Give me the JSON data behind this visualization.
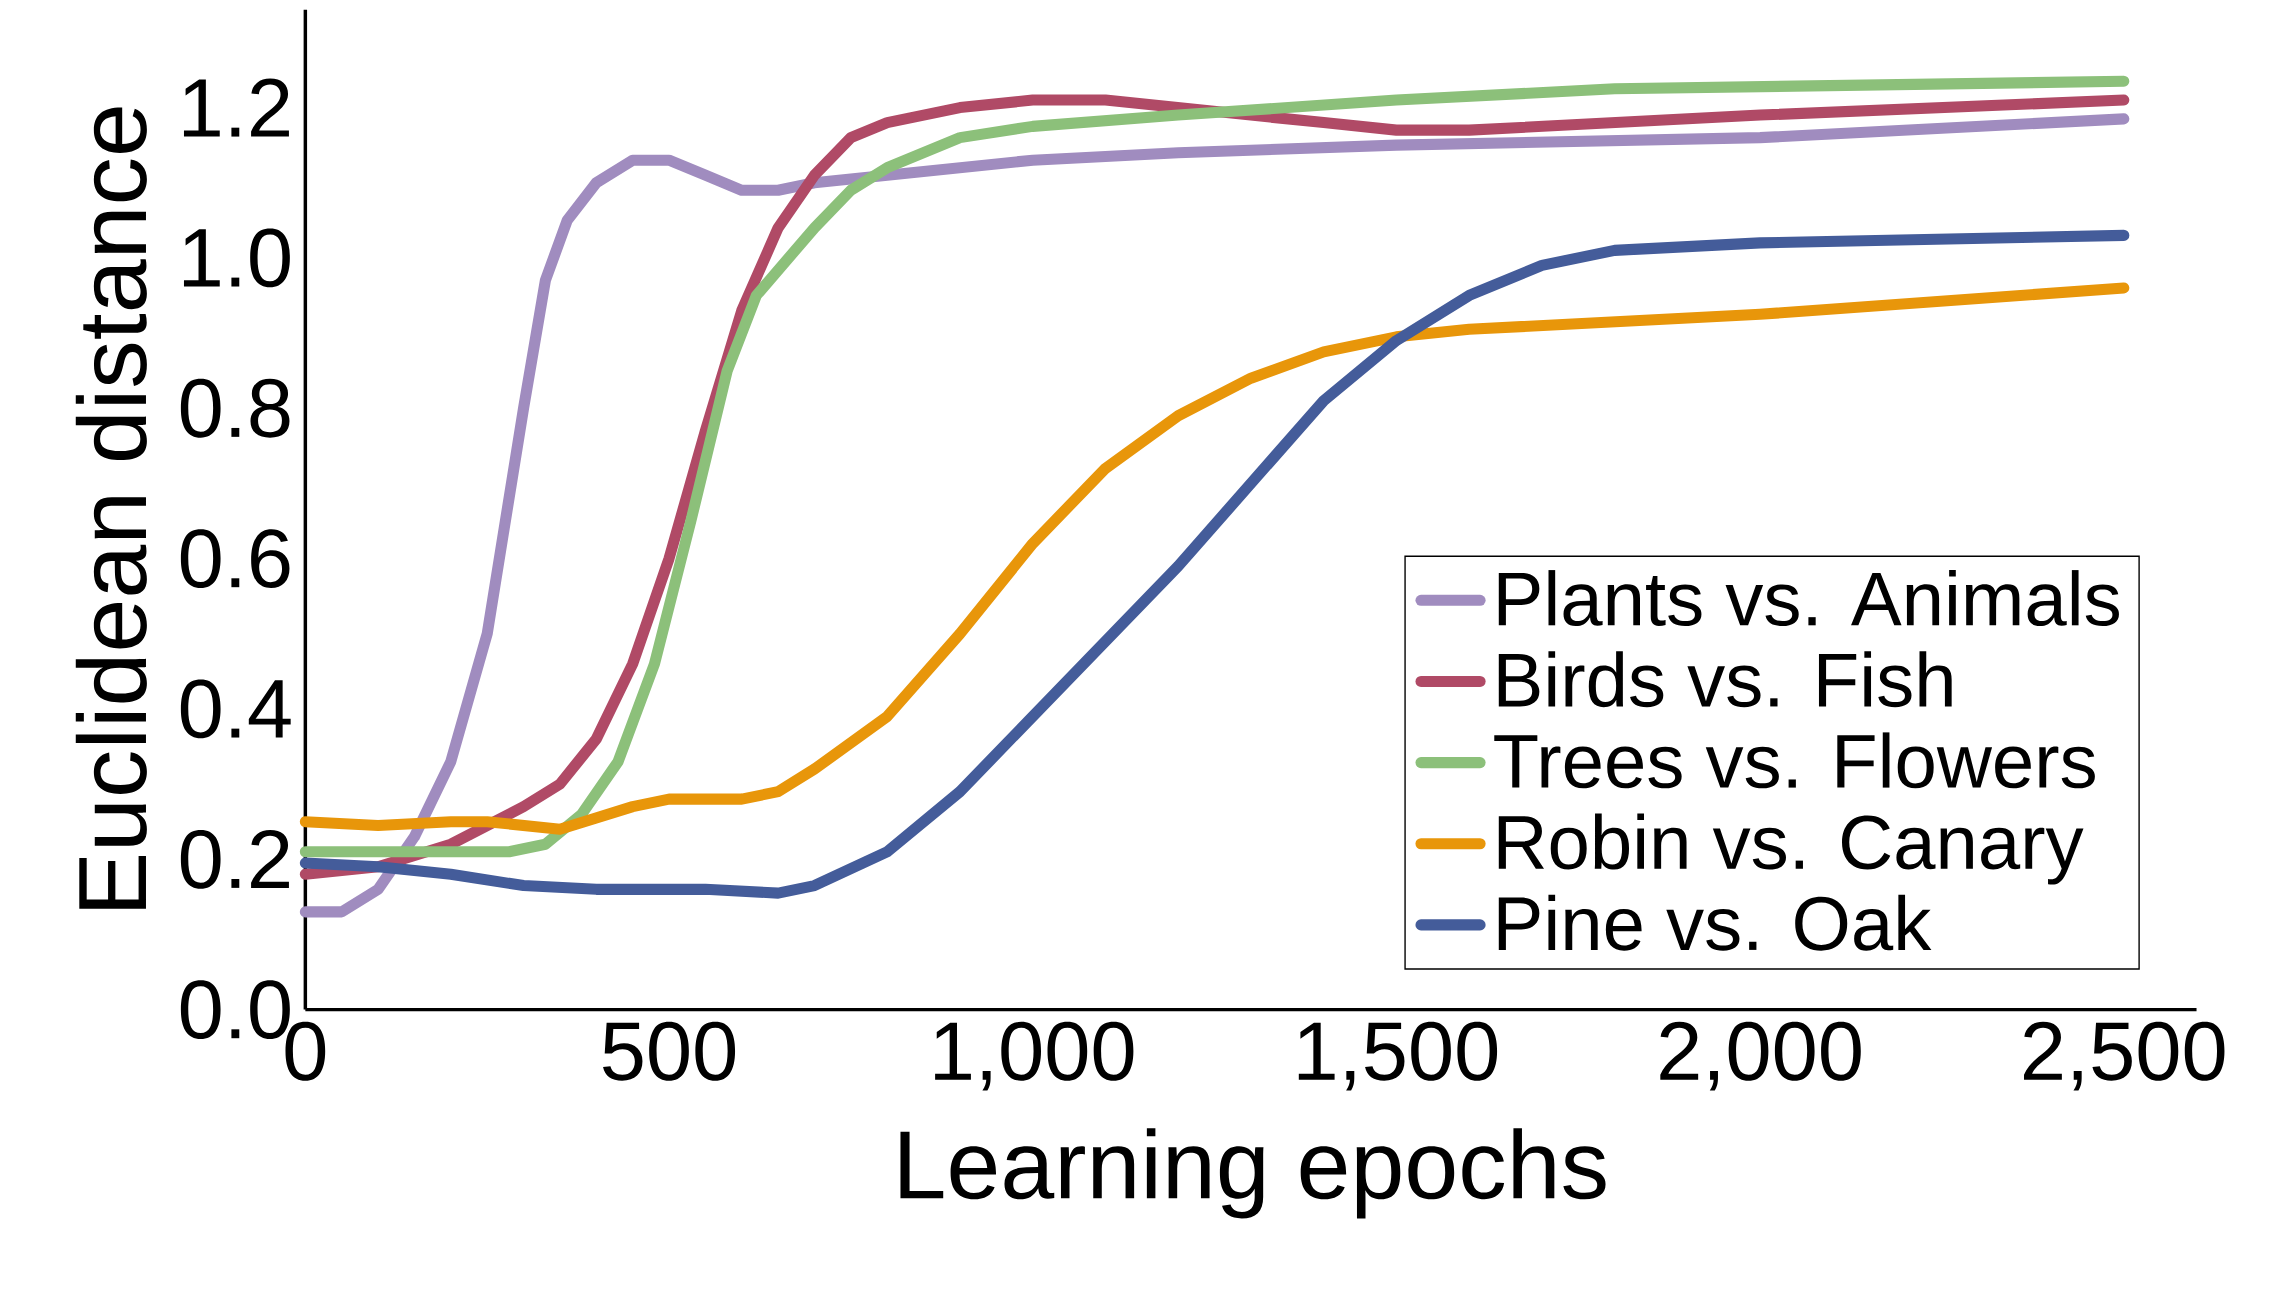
{
  "chart_data": {
    "type": "line",
    "xlabel": "Learning epochs",
    "ylabel": "Euclidean distance",
    "xlim": [
      0,
      2600
    ],
    "ylim": [
      0,
      1.33
    ],
    "xticks": [
      0,
      500,
      {
        "value": 1000,
        "label": "1,000"
      },
      {
        "value": 1500,
        "label": "1,500"
      },
      {
        "value": 2000,
        "label": "2,000"
      },
      {
        "value": 2500,
        "label": "2,500"
      }
    ],
    "yticks": [
      {
        "value": 0,
        "label": "0.0"
      },
      0.2,
      0.4,
      0.6,
      0.8,
      {
        "value": 1,
        "label": "1.0"
      },
      1.2
    ],
    "legend": "bottom right",
    "line_style": "solid",
    "marker": "none",
    "series": [
      {
        "name": "Plants vs. Animals",
        "color": "#a08cbf",
        "x": [
          0,
          50,
          100,
          150,
          200,
          250,
          300,
          330,
          360,
          400,
          450,
          500,
          550,
          600,
          650,
          700,
          800,
          1000,
          1200,
          1500,
          2000,
          2500
        ],
        "values": [
          0.13,
          0.13,
          0.16,
          0.23,
          0.33,
          0.5,
          0.8,
          0.97,
          1.05,
          1.1,
          1.13,
          1.13,
          1.11,
          1.09,
          1.09,
          1.1,
          1.11,
          1.13,
          1.14,
          1.15,
          1.16,
          1.185
        ]
      },
      {
        "name": "Birds vs. Fish",
        "color": "#b04a66",
        "x": [
          0,
          100,
          200,
          300,
          350,
          400,
          450,
          500,
          550,
          600,
          650,
          700,
          750,
          800,
          900,
          1000,
          1100,
          1200,
          1300,
          1400,
          1500,
          1600,
          2000,
          2500
        ],
        "values": [
          0.18,
          0.19,
          0.22,
          0.27,
          0.3,
          0.36,
          0.46,
          0.6,
          0.77,
          0.93,
          1.04,
          1.11,
          1.16,
          1.18,
          1.2,
          1.21,
          1.21,
          1.2,
          1.19,
          1.18,
          1.17,
          1.17,
          1.19,
          1.21
        ]
      },
      {
        "name": "Trees vs. Flowers",
        "color": "#8cc07a",
        "x": [
          0,
          100,
          200,
          280,
          330,
          380,
          430,
          480,
          530,
          580,
          620,
          700,
          750,
          800,
          900,
          1000,
          1200,
          1500,
          1800,
          2500
        ],
        "values": [
          0.21,
          0.21,
          0.21,
          0.21,
          0.22,
          0.26,
          0.33,
          0.46,
          0.65,
          0.85,
          0.95,
          1.04,
          1.09,
          1.12,
          1.16,
          1.175,
          1.19,
          1.21,
          1.225,
          1.235
        ]
      },
      {
        "name": "Robin vs. Canary",
        "color": "#e8960a",
        "x": [
          0,
          100,
          200,
          250,
          350,
          450,
          500,
          550,
          600,
          650,
          700,
          800,
          900,
          1000,
          1100,
          1200,
          1300,
          1400,
          1500,
          1600,
          2000,
          2500
        ],
        "values": [
          0.25,
          0.245,
          0.25,
          0.25,
          0.24,
          0.27,
          0.28,
          0.28,
          0.28,
          0.29,
          0.32,
          0.39,
          0.5,
          0.62,
          0.72,
          0.79,
          0.84,
          0.875,
          0.895,
          0.905,
          0.925,
          0.96
        ]
      },
      {
        "name": "Pine vs. Oak",
        "color": "#445c9a",
        "x": [
          0,
          100,
          200,
          300,
          400,
          500,
          550,
          650,
          700,
          800,
          900,
          1000,
          1100,
          1200,
          1300,
          1400,
          1500,
          1600,
          1700,
          1800,
          2000,
          2500
        ],
        "values": [
          0.195,
          0.19,
          0.18,
          0.165,
          0.16,
          0.16,
          0.16,
          0.155,
          0.165,
          0.21,
          0.29,
          0.39,
          0.49,
          0.59,
          0.7,
          0.81,
          0.89,
          0.95,
          0.99,
          1.01,
          1.02,
          1.03
        ]
      }
    ]
  }
}
